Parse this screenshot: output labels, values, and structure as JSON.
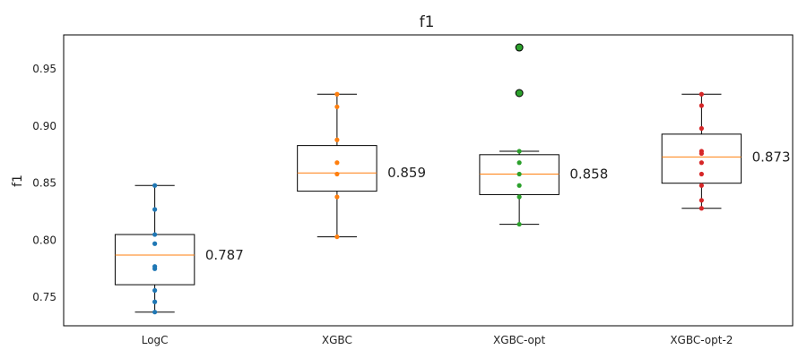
{
  "chart_data": {
    "type": "box",
    "title": "f1",
    "xlabel": "",
    "ylabel": "f1",
    "ylim": [
      0.725,
      0.98
    ],
    "yticks": [
      0.75,
      0.8,
      0.85,
      0.9,
      0.95
    ],
    "ytick_labels": [
      "0.75",
      "0.80",
      "0.85",
      "0.90",
      "0.95"
    ],
    "grid": false,
    "categories": [
      "LogC",
      "XGBC",
      "XGBC-opt",
      "XGBC-opt-2"
    ],
    "series": [
      {
        "category": "LogC",
        "color": "#1f77b4",
        "whisker_low": 0.737,
        "q1": 0.761,
        "median": 0.787,
        "q3": 0.805,
        "whisker_high": 0.848,
        "median_label": "0.787",
        "points": [
          0.737,
          0.746,
          0.756,
          0.775,
          0.777,
          0.797,
          0.805,
          0.827,
          0.848
        ],
        "outliers": []
      },
      {
        "category": "XGBC",
        "color": "#ff7f0e",
        "whisker_low": 0.803,
        "q1": 0.843,
        "median": 0.859,
        "q3": 0.883,
        "whisker_high": 0.928,
        "median_label": "0.859",
        "points": [
          0.803,
          0.838,
          0.858,
          0.868,
          0.888,
          0.917,
          0.928
        ],
        "outliers": []
      },
      {
        "category": "XGBC-opt",
        "color": "#2ca02c",
        "whisker_low": 0.814,
        "q1": 0.84,
        "median": 0.858,
        "q3": 0.875,
        "whisker_high": 0.878,
        "median_label": "0.858",
        "points": [
          0.814,
          0.838,
          0.848,
          0.858,
          0.868,
          0.878
        ],
        "outliers": [
          0.929,
          0.969
        ]
      },
      {
        "category": "XGBC-opt-2",
        "color": "#d62728",
        "whisker_low": 0.828,
        "q1": 0.85,
        "median": 0.873,
        "q3": 0.893,
        "whisker_high": 0.928,
        "median_label": "0.873",
        "points": [
          0.828,
          0.835,
          0.848,
          0.858,
          0.868,
          0.876,
          0.878,
          0.898,
          0.918,
          0.928
        ],
        "outliers": []
      }
    ],
    "colors": {
      "box": "#000000",
      "median_line": "#ff7f0e",
      "outlier_fill": "#2ca02c"
    }
  }
}
